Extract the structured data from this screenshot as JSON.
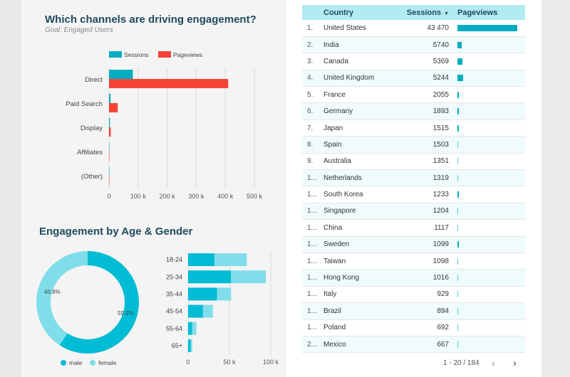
{
  "channels": {
    "title": "Which channels are driving engagement?",
    "subtitle": "Goal: Engaged Users",
    "legend": [
      "Sessions",
      "Pageviews"
    ],
    "colors": {
      "sessions": "#00acc1",
      "pageviews": "#f44336"
    }
  },
  "age_gender": {
    "title": "Engagement by Age & Gender",
    "legend": [
      "male",
      "female"
    ],
    "colors": {
      "male": "#00bcd4",
      "female": "#80deea"
    },
    "male_pct_label": "59.2%",
    "female_pct_label": "40.8%"
  },
  "table": {
    "headers": {
      "country": "Country",
      "sessions": "Sessions",
      "pageviews": "Pageviews"
    },
    "rows": [
      {
        "idx": "1.",
        "country": "United States",
        "sessions": "43 470",
        "pv": 1.0
      },
      {
        "idx": "2.",
        "country": "India",
        "sessions": "5740",
        "pv": 0.07
      },
      {
        "idx": "3.",
        "country": "Canada",
        "sessions": "5369",
        "pv": 0.085
      },
      {
        "idx": "4.",
        "country": "United Kingdom",
        "sessions": "5244",
        "pv": 0.09
      },
      {
        "idx": "5.",
        "country": "France",
        "sessions": "2055",
        "pv": 0.02
      },
      {
        "idx": "6.",
        "country": "Germany",
        "sessions": "1893",
        "pv": 0.02
      },
      {
        "idx": "7.",
        "country": "Japan",
        "sessions": "1515",
        "pv": 0.02
      },
      {
        "idx": "8.",
        "country": "Spain",
        "sessions": "1503",
        "pv": 0.012
      },
      {
        "idx": "9.",
        "country": "Australia",
        "sessions": "1351",
        "pv": 0.012
      },
      {
        "idx": "1...",
        "country": "Netherlands",
        "sessions": "1319",
        "pv": 0.012
      },
      {
        "idx": "1...",
        "country": "South Korea",
        "sessions": "1233",
        "pv": 0.02
      },
      {
        "idx": "1...",
        "country": "Singapore",
        "sessions": "1204",
        "pv": 0.012
      },
      {
        "idx": "1...",
        "country": "China",
        "sessions": "1117",
        "pv": 0.012
      },
      {
        "idx": "1...",
        "country": "Sweden",
        "sessions": "1099",
        "pv": 0.025
      },
      {
        "idx": "1...",
        "country": "Taiwan",
        "sessions": "1098",
        "pv": 0.012
      },
      {
        "idx": "1...",
        "country": "Hong Kong",
        "sessions": "1016",
        "pv": 0.012
      },
      {
        "idx": "1...",
        "country": "Italy",
        "sessions": "929",
        "pv": 0.012
      },
      {
        "idx": "1...",
        "country": "Brazil",
        "sessions": "894",
        "pv": 0.012
      },
      {
        "idx": "1...",
        "country": "Poland",
        "sessions": "692",
        "pv": 0.012
      },
      {
        "idx": "2...",
        "country": "Mexico",
        "sessions": "667",
        "pv": 0.012
      }
    ],
    "pager": "1 - 20 / 184",
    "prev_icon": "chevron-left-icon",
    "next_icon": "chevron-right-icon"
  },
  "chart_data": [
    {
      "type": "bar",
      "orientation": "horizontal",
      "categories": [
        "Direct",
        "Paid Search",
        "Display",
        "Affiliates",
        "(Other)"
      ],
      "series": [
        {
          "name": "Sessions",
          "values": [
            82000,
            5000,
            3000,
            500,
            200
          ]
        },
        {
          "name": "Pageviews",
          "values": [
            410000,
            30000,
            6000,
            1000,
            500
          ]
        }
      ],
      "xticks": [
        "0",
        "100 k",
        "200 k",
        "300 k",
        "400 k",
        "500 k"
      ],
      "xlim": [
        0,
        500000
      ],
      "legend_position": "top"
    },
    {
      "type": "pie",
      "donut": true,
      "labels": [
        "male",
        "female"
      ],
      "values": [
        59.2,
        40.8
      ],
      "legend_position": "bottom"
    },
    {
      "type": "bar",
      "orientation": "horizontal",
      "stacked": true,
      "categories": [
        "18-24",
        "25-34",
        "35-44",
        "45-54",
        "55-64",
        "65+"
      ],
      "series": [
        {
          "name": "male",
          "values": [
            32000,
            52000,
            35000,
            18000,
            5000,
            3000
          ]
        },
        {
          "name": "female",
          "values": [
            39000,
            42000,
            17000,
            12000,
            5000,
            2000
          ]
        }
      ],
      "xticks": [
        "0",
        "50 k",
        "100 k"
      ],
      "xlim": [
        0,
        100000
      ]
    }
  ]
}
